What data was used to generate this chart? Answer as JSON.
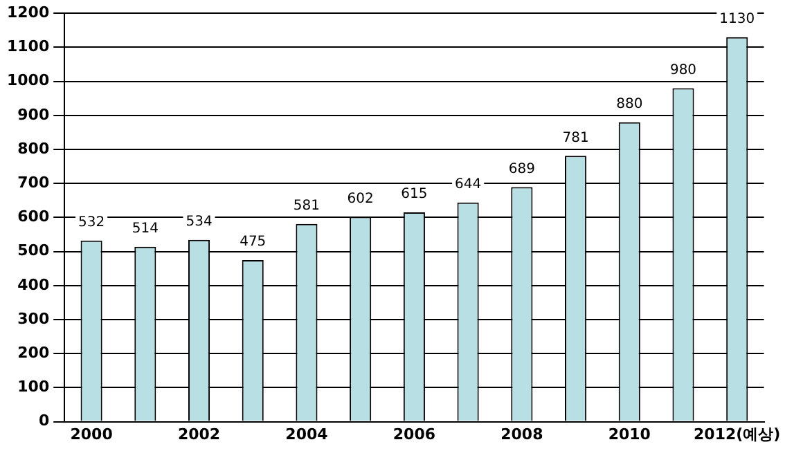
{
  "chart_data": {
    "type": "bar",
    "categories": [
      "2000",
      null,
      "2002",
      null,
      "2004",
      null,
      "2006",
      null,
      "2008",
      null,
      "2010",
      null,
      "2012(예상)"
    ],
    "values": [
      532,
      514,
      534,
      475,
      581,
      602,
      615,
      644,
      689,
      781,
      880,
      980,
      1130
    ],
    "color": "#b8dfe3",
    "ylim": [
      0,
      1200
    ],
    "yticks": [
      0,
      100,
      200,
      300,
      400,
      500,
      600,
      700,
      800,
      900,
      1000,
      1100,
      1200
    ],
    "grid": "y",
    "data_labels": true
  }
}
